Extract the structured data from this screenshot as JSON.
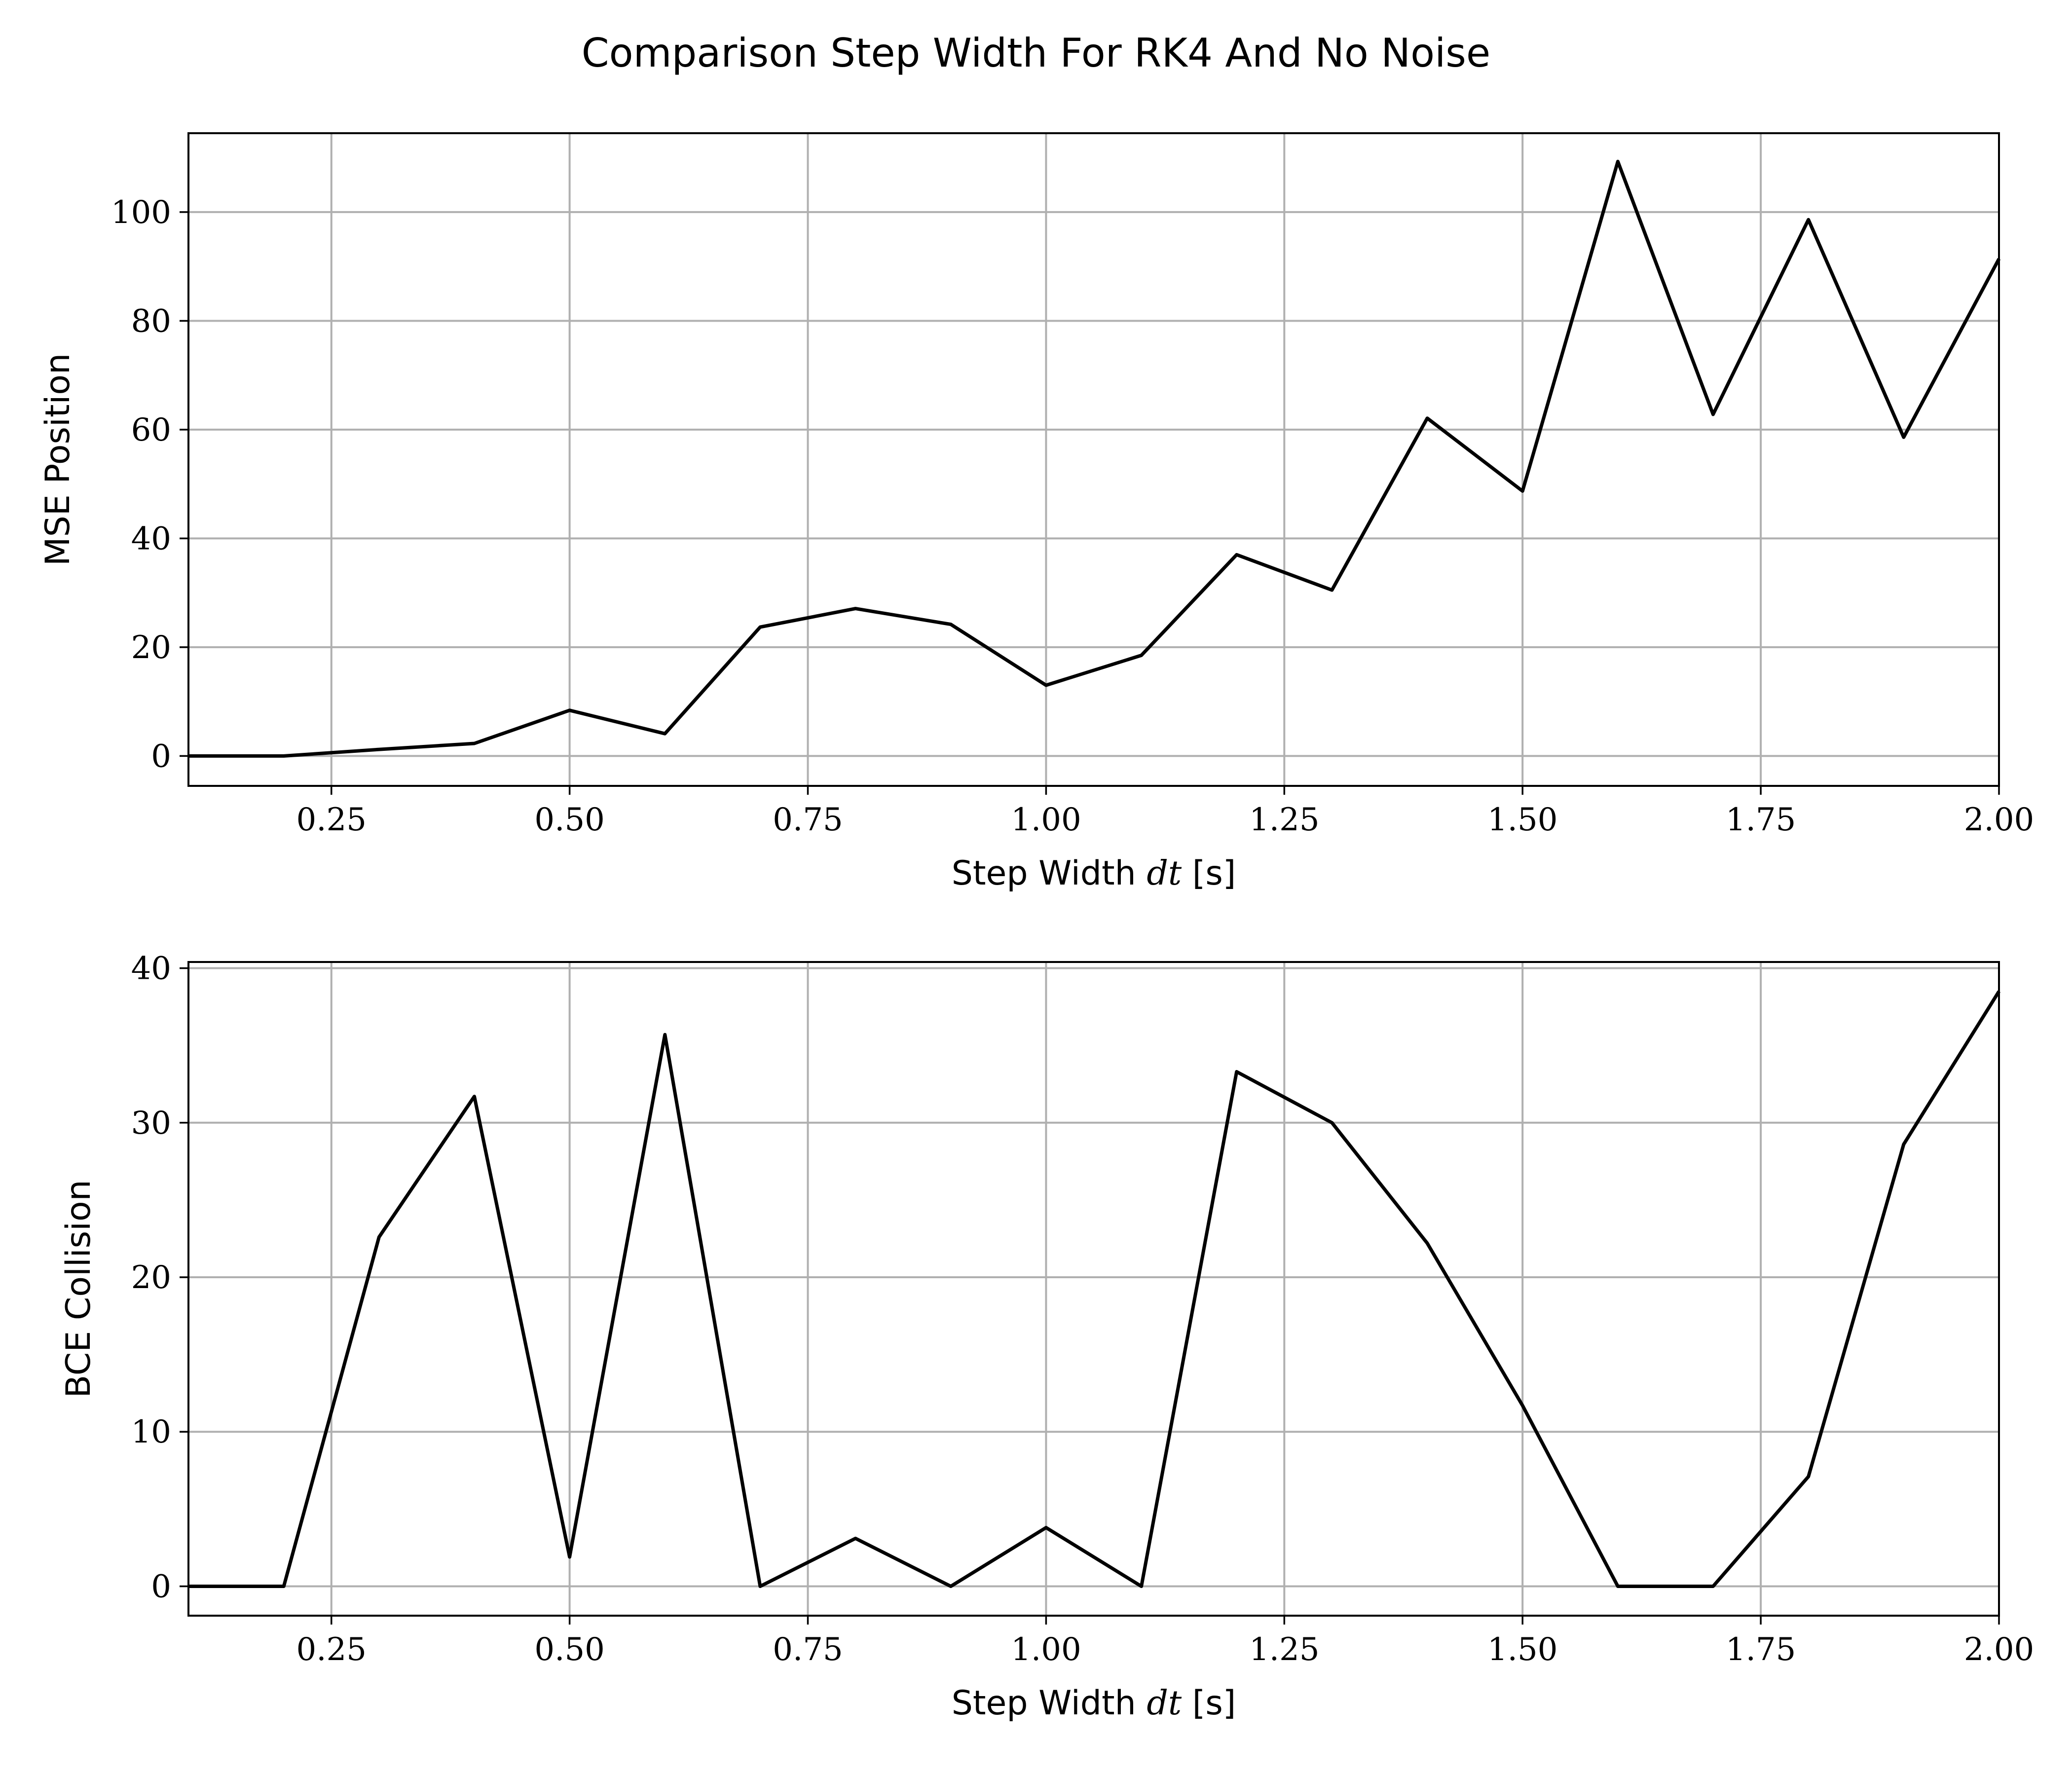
{
  "title": "Comparison Step Width For RK4 And No Noise",
  "chart_data": [
    {
      "type": "line",
      "ylabel": "MSE Position",
      "xlabel": "Step Width dt [s]",
      "xlabel_parts": {
        "prefix": "Step Width ",
        "var": "dt",
        "suffix": " [s]"
      },
      "xlim": [
        0.1,
        2.0
      ],
      "ylim": [
        -5.5,
        114.5
      ],
      "grid": true,
      "x_ticks": [
        0.25,
        0.5,
        0.75,
        1.0,
        1.25,
        1.5,
        1.75,
        2.0
      ],
      "x_tick_labels": [
        "0.25",
        "0.50",
        "0.75",
        "1.00",
        "1.25",
        "1.50",
        "1.75",
        "2.00"
      ],
      "y_ticks": [
        0,
        20,
        40,
        60,
        80,
        100
      ],
      "y_tick_labels": [
        "0",
        "20",
        "40",
        "60",
        "80",
        "100"
      ],
      "x": [
        0.1,
        0.2,
        0.3,
        0.4,
        0.5,
        0.6,
        0.7,
        0.8,
        0.9,
        1.0,
        1.1,
        1.2,
        1.3,
        1.4,
        1.5,
        1.6,
        1.7,
        1.8,
        1.9,
        2.0
      ],
      "series": [
        {
          "values": [
            0,
            0,
            1.2,
            2.3,
            8.4,
            4.1,
            23.7,
            27.1,
            24.2,
            13.0,
            18.5,
            37.0,
            30.5,
            62.1,
            48.7,
            109.3,
            62.8,
            98.6,
            58.6,
            91.4
          ],
          "color": "#000000"
        }
      ]
    },
    {
      "type": "line",
      "ylabel": "BCE Collision",
      "xlabel": "Step Width dt [s]",
      "xlabel_parts": {
        "prefix": "Step Width ",
        "var": "dt",
        "suffix": " [s]"
      },
      "xlim": [
        0.1,
        2.0
      ],
      "ylim": [
        -1.9,
        40.4
      ],
      "grid": true,
      "x_ticks": [
        0.25,
        0.5,
        0.75,
        1.0,
        1.25,
        1.5,
        1.75,
        2.0
      ],
      "x_tick_labels": [
        "0.25",
        "0.50",
        "0.75",
        "1.00",
        "1.25",
        "1.50",
        "1.75",
        "2.00"
      ],
      "y_ticks": [
        0,
        10,
        20,
        30,
        40
      ],
      "y_tick_labels": [
        "0",
        "10",
        "20",
        "30",
        "40"
      ],
      "x": [
        0.1,
        0.2,
        0.3,
        0.4,
        0.5,
        0.6,
        0.7,
        0.8,
        0.9,
        1.0,
        1.1,
        1.2,
        1.3,
        1.4,
        1.5,
        1.6,
        1.7,
        1.8,
        1.9,
        2.0
      ],
      "series": [
        {
          "values": [
            0,
            0,
            22.6,
            31.7,
            1.9,
            35.7,
            0,
            3.1,
            0,
            3.8,
            0,
            33.3,
            30.0,
            22.2,
            11.7,
            0,
            0,
            7.1,
            28.6,
            38.5
          ],
          "color": "#000000"
        }
      ]
    }
  ]
}
